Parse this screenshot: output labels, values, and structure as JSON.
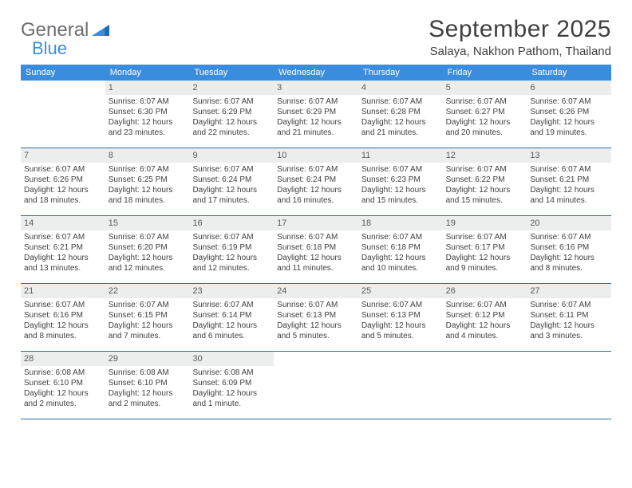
{
  "logo": {
    "word1": "General",
    "word2": "Blue"
  },
  "header": {
    "month_title": "September 2025",
    "location": "Salaya, Nakhon Pathom, Thailand"
  },
  "colors": {
    "header_bg": "#3a8dde",
    "header_text": "#ffffff",
    "daynum_bg": "#eceded",
    "week_divider": "#2f6aa8",
    "body_text": "#3f3f3f",
    "logo_gray": "#6d6e71",
    "logo_blue": "#3a8dde"
  },
  "weekdays": [
    "Sunday",
    "Monday",
    "Tuesday",
    "Wednesday",
    "Thursday",
    "Friday",
    "Saturday"
  ],
  "weeks": [
    [
      {
        "n": "",
        "sunrise": "",
        "sunset": "",
        "d1": "",
        "d2": ""
      },
      {
        "n": "1",
        "sunrise": "Sunrise: 6:07 AM",
        "sunset": "Sunset: 6:30 PM",
        "d1": "Daylight: 12 hours",
        "d2": "and 23 minutes."
      },
      {
        "n": "2",
        "sunrise": "Sunrise: 6:07 AM",
        "sunset": "Sunset: 6:29 PM",
        "d1": "Daylight: 12 hours",
        "d2": "and 22 minutes."
      },
      {
        "n": "3",
        "sunrise": "Sunrise: 6:07 AM",
        "sunset": "Sunset: 6:29 PM",
        "d1": "Daylight: 12 hours",
        "d2": "and 21 minutes."
      },
      {
        "n": "4",
        "sunrise": "Sunrise: 6:07 AM",
        "sunset": "Sunset: 6:28 PM",
        "d1": "Daylight: 12 hours",
        "d2": "and 21 minutes."
      },
      {
        "n": "5",
        "sunrise": "Sunrise: 6:07 AM",
        "sunset": "Sunset: 6:27 PM",
        "d1": "Daylight: 12 hours",
        "d2": "and 20 minutes."
      },
      {
        "n": "6",
        "sunrise": "Sunrise: 6:07 AM",
        "sunset": "Sunset: 6:26 PM",
        "d1": "Daylight: 12 hours",
        "d2": "and 19 minutes."
      }
    ],
    [
      {
        "n": "7",
        "sunrise": "Sunrise: 6:07 AM",
        "sunset": "Sunset: 6:26 PM",
        "d1": "Daylight: 12 hours",
        "d2": "and 18 minutes."
      },
      {
        "n": "8",
        "sunrise": "Sunrise: 6:07 AM",
        "sunset": "Sunset: 6:25 PM",
        "d1": "Daylight: 12 hours",
        "d2": "and 18 minutes."
      },
      {
        "n": "9",
        "sunrise": "Sunrise: 6:07 AM",
        "sunset": "Sunset: 6:24 PM",
        "d1": "Daylight: 12 hours",
        "d2": "and 17 minutes."
      },
      {
        "n": "10",
        "sunrise": "Sunrise: 6:07 AM",
        "sunset": "Sunset: 6:24 PM",
        "d1": "Daylight: 12 hours",
        "d2": "and 16 minutes."
      },
      {
        "n": "11",
        "sunrise": "Sunrise: 6:07 AM",
        "sunset": "Sunset: 6:23 PM",
        "d1": "Daylight: 12 hours",
        "d2": "and 15 minutes."
      },
      {
        "n": "12",
        "sunrise": "Sunrise: 6:07 AM",
        "sunset": "Sunset: 6:22 PM",
        "d1": "Daylight: 12 hours",
        "d2": "and 15 minutes."
      },
      {
        "n": "13",
        "sunrise": "Sunrise: 6:07 AM",
        "sunset": "Sunset: 6:21 PM",
        "d1": "Daylight: 12 hours",
        "d2": "and 14 minutes."
      }
    ],
    [
      {
        "n": "14",
        "sunrise": "Sunrise: 6:07 AM",
        "sunset": "Sunset: 6:21 PM",
        "d1": "Daylight: 12 hours",
        "d2": "and 13 minutes."
      },
      {
        "n": "15",
        "sunrise": "Sunrise: 6:07 AM",
        "sunset": "Sunset: 6:20 PM",
        "d1": "Daylight: 12 hours",
        "d2": "and 12 minutes."
      },
      {
        "n": "16",
        "sunrise": "Sunrise: 6:07 AM",
        "sunset": "Sunset: 6:19 PM",
        "d1": "Daylight: 12 hours",
        "d2": "and 12 minutes."
      },
      {
        "n": "17",
        "sunrise": "Sunrise: 6:07 AM",
        "sunset": "Sunset: 6:18 PM",
        "d1": "Daylight: 12 hours",
        "d2": "and 11 minutes."
      },
      {
        "n": "18",
        "sunrise": "Sunrise: 6:07 AM",
        "sunset": "Sunset: 6:18 PM",
        "d1": "Daylight: 12 hours",
        "d2": "and 10 minutes."
      },
      {
        "n": "19",
        "sunrise": "Sunrise: 6:07 AM",
        "sunset": "Sunset: 6:17 PM",
        "d1": "Daylight: 12 hours",
        "d2": "and 9 minutes."
      },
      {
        "n": "20",
        "sunrise": "Sunrise: 6:07 AM",
        "sunset": "Sunset: 6:16 PM",
        "d1": "Daylight: 12 hours",
        "d2": "and 8 minutes."
      }
    ],
    [
      {
        "n": "21",
        "sunrise": "Sunrise: 6:07 AM",
        "sunset": "Sunset: 6:16 PM",
        "d1": "Daylight: 12 hours",
        "d2": "and 8 minutes."
      },
      {
        "n": "22",
        "sunrise": "Sunrise: 6:07 AM",
        "sunset": "Sunset: 6:15 PM",
        "d1": "Daylight: 12 hours",
        "d2": "and 7 minutes."
      },
      {
        "n": "23",
        "sunrise": "Sunrise: 6:07 AM",
        "sunset": "Sunset: 6:14 PM",
        "d1": "Daylight: 12 hours",
        "d2": "and 6 minutes."
      },
      {
        "n": "24",
        "sunrise": "Sunrise: 6:07 AM",
        "sunset": "Sunset: 6:13 PM",
        "d1": "Daylight: 12 hours",
        "d2": "and 5 minutes."
      },
      {
        "n": "25",
        "sunrise": "Sunrise: 6:07 AM",
        "sunset": "Sunset: 6:13 PM",
        "d1": "Daylight: 12 hours",
        "d2": "and 5 minutes."
      },
      {
        "n": "26",
        "sunrise": "Sunrise: 6:07 AM",
        "sunset": "Sunset: 6:12 PM",
        "d1": "Daylight: 12 hours",
        "d2": "and 4 minutes."
      },
      {
        "n": "27",
        "sunrise": "Sunrise: 6:07 AM",
        "sunset": "Sunset: 6:11 PM",
        "d1": "Daylight: 12 hours",
        "d2": "and 3 minutes."
      }
    ],
    [
      {
        "n": "28",
        "sunrise": "Sunrise: 6:08 AM",
        "sunset": "Sunset: 6:10 PM",
        "d1": "Daylight: 12 hours",
        "d2": "and 2 minutes."
      },
      {
        "n": "29",
        "sunrise": "Sunrise: 6:08 AM",
        "sunset": "Sunset: 6:10 PM",
        "d1": "Daylight: 12 hours",
        "d2": "and 2 minutes."
      },
      {
        "n": "30",
        "sunrise": "Sunrise: 6:08 AM",
        "sunset": "Sunset: 6:09 PM",
        "d1": "Daylight: 12 hours",
        "d2": "and 1 minute."
      },
      {
        "n": "",
        "sunrise": "",
        "sunset": "",
        "d1": "",
        "d2": ""
      },
      {
        "n": "",
        "sunrise": "",
        "sunset": "",
        "d1": "",
        "d2": ""
      },
      {
        "n": "",
        "sunrise": "",
        "sunset": "",
        "d1": "",
        "d2": ""
      },
      {
        "n": "",
        "sunrise": "",
        "sunset": "",
        "d1": "",
        "d2": ""
      }
    ]
  ]
}
